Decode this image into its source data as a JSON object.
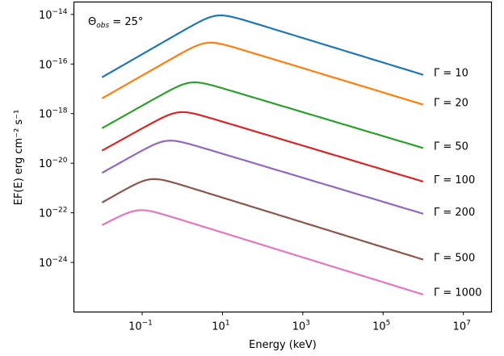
{
  "chart_data": {
    "type": "line",
    "xlabel": "Energy (keV)",
    "ylabel": "EF(E) erg cm⁻² s⁻¹",
    "xscale": "log",
    "yscale": "log",
    "xlim_exp": [
      -2.7,
      7.7
    ],
    "ylim_exp": [
      -26.0,
      -13.5
    ],
    "grid": false,
    "annotation": {
      "base": "Θ",
      "sub": "obs",
      "value": " = 25°"
    },
    "x_ticks": [
      {
        "exp": -1,
        "base": "10",
        "sup": "−1"
      },
      {
        "exp": 1,
        "base": "10",
        "sup": "1"
      },
      {
        "exp": 3,
        "base": "10",
        "sup": "3"
      },
      {
        "exp": 5,
        "base": "10",
        "sup": "5"
      },
      {
        "exp": 7,
        "base": "10",
        "sup": "7"
      }
    ],
    "y_ticks": [
      {
        "exp": -14,
        "base": "10",
        "sup": "−14"
      },
      {
        "exp": -16,
        "base": "10",
        "sup": "−16"
      },
      {
        "exp": -18,
        "base": "10",
        "sup": "−18"
      },
      {
        "exp": -20,
        "base": "10",
        "sup": "−20"
      },
      {
        "exp": -22,
        "base": "10",
        "sup": "−22"
      },
      {
        "exp": -24,
        "base": "10",
        "sup": "−24"
      }
    ],
    "series": [
      {
        "name": "Γ = 10",
        "color": "#1f77b4",
        "log_x": [
          -2,
          0.85,
          6
        ],
        "log_y": [
          -16.7,
          -14.05,
          -16.6
        ]
      },
      {
        "name": "Γ = 20",
        "color": "#ff7f0e",
        "log_x": [
          -2,
          0.6,
          6
        ],
        "log_y": [
          -17.55,
          -15.15,
          -17.8
        ]
      },
      {
        "name": "Γ = 50",
        "color": "#2ca02c",
        "log_x": [
          -2,
          0.2,
          6
        ],
        "log_y": [
          -18.75,
          -16.75,
          -19.55
        ]
      },
      {
        "name": "Γ = 100",
        "color": "#d62728",
        "log_x": [
          -2,
          -0.1,
          6
        ],
        "log_y": [
          -19.65,
          -17.95,
          -20.9
        ]
      },
      {
        "name": "Γ = 200",
        "color": "#9467bd",
        "log_x": [
          -2,
          -0.4,
          6
        ],
        "log_y": [
          -20.55,
          -19.1,
          -22.2
        ]
      },
      {
        "name": "Γ = 500",
        "color": "#8c564b",
        "log_x": [
          -2,
          -0.8,
          6
        ],
        "log_y": [
          -21.75,
          -20.65,
          -24.05
        ]
      },
      {
        "name": "Γ = 1000",
        "color": "#e377c2",
        "log_x": [
          -2,
          -1.1,
          6
        ],
        "log_y": [
          -22.65,
          -21.9,
          -25.45
        ]
      }
    ]
  }
}
